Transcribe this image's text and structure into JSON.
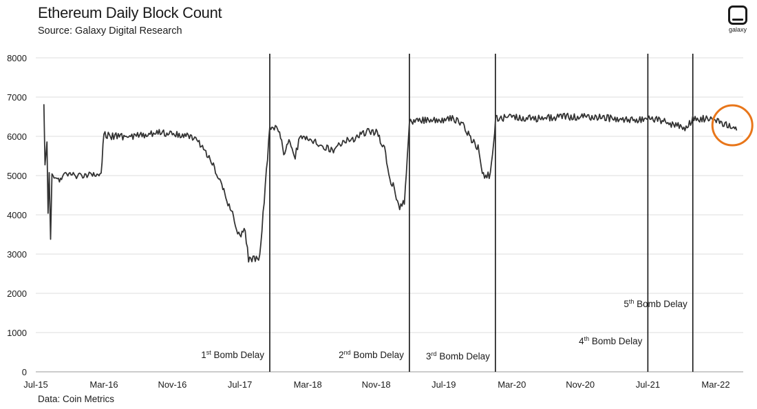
{
  "header": {
    "title": "Ethereum Daily Block Count",
    "subtitle": "Source: Galaxy Digital Research"
  },
  "footer": {
    "source": "Data: Coin Metrics"
  },
  "logo": {
    "icon": "galaxy-logo-icon",
    "text": "galaxy"
  },
  "colors": {
    "line": "#333333",
    "grid": "#dddddd",
    "event": "#111111",
    "highlight": "#e8761a"
  },
  "chart_data": {
    "type": "line",
    "title": "Ethereum Daily Block Count",
    "xlabel": "",
    "ylabel": "",
    "ylim": [
      0,
      8000
    ],
    "xlim": [
      "2015-07-30",
      "2022-05-15"
    ],
    "grid": "horizontal",
    "y_ticks": [
      0,
      1000,
      2000,
      3000,
      4000,
      5000,
      6000,
      7000,
      8000
    ],
    "x_ticks": [
      {
        "label": "Jul-15",
        "date": "2015-07-01"
      },
      {
        "label": "Mar-16",
        "date": "2016-03-01"
      },
      {
        "label": "Nov-16",
        "date": "2016-11-01"
      },
      {
        "label": "Jul-17",
        "date": "2017-07-01"
      },
      {
        "label": "Mar-18",
        "date": "2018-03-01"
      },
      {
        "label": "Nov-18",
        "date": "2018-11-01"
      },
      {
        "label": "Jul-19",
        "date": "2019-07-01"
      },
      {
        "label": "Mar-20",
        "date": "2020-03-01"
      },
      {
        "label": "Nov-20",
        "date": "2020-11-01"
      },
      {
        "label": "Jul-21",
        "date": "2021-07-01"
      },
      {
        "label": "Mar-22",
        "date": "2022-03-01"
      }
    ],
    "series": [
      {
        "values": [
          [
            "2015-07-30",
            6900
          ],
          [
            "2015-08-03",
            5200
          ],
          [
            "2015-08-10",
            5800
          ],
          [
            "2015-08-14",
            4000
          ],
          [
            "2015-08-18",
            5100
          ],
          [
            "2015-08-23",
            3400
          ],
          [
            "2015-08-28",
            5000
          ],
          [
            "2015-09-20",
            4900
          ],
          [
            "2015-10-20",
            5050
          ],
          [
            "2015-11-20",
            5000
          ],
          [
            "2015-12-20",
            5000
          ],
          [
            "2016-01-20",
            5050
          ],
          [
            "2016-02-05",
            5000
          ],
          [
            "2016-02-20",
            5100
          ],
          [
            "2016-03-01",
            6050
          ],
          [
            "2016-04-01",
            6000
          ],
          [
            "2016-06-01",
            6000
          ],
          [
            "2016-08-01",
            6050
          ],
          [
            "2016-09-15",
            6100
          ],
          [
            "2016-11-01",
            6050
          ],
          [
            "2017-01-01",
            6000
          ],
          [
            "2017-02-01",
            5900
          ],
          [
            "2017-03-01",
            5600
          ],
          [
            "2017-04-01",
            5200
          ],
          [
            "2017-05-01",
            4700
          ],
          [
            "2017-05-15",
            4300
          ],
          [
            "2017-06-01",
            4150
          ],
          [
            "2017-06-15",
            3700
          ],
          [
            "2017-07-01",
            3500
          ],
          [
            "2017-07-20",
            3600
          ],
          [
            "2017-08-01",
            2850
          ],
          [
            "2017-09-10",
            2900
          ],
          [
            "2017-10-16",
            6200
          ],
          [
            "2017-11-05",
            6250
          ],
          [
            "2017-11-20",
            6150
          ],
          [
            "2017-12-05",
            5500
          ],
          [
            "2017-12-20",
            5900
          ],
          [
            "2018-01-15",
            5500
          ],
          [
            "2018-02-01",
            5950
          ],
          [
            "2018-03-01",
            5950
          ],
          [
            "2018-04-01",
            5850
          ],
          [
            "2018-05-01",
            5700
          ],
          [
            "2018-06-01",
            5650
          ],
          [
            "2018-07-01",
            5850
          ],
          [
            "2018-08-01",
            5900
          ],
          [
            "2018-09-01",
            6000
          ],
          [
            "2018-10-01",
            6150
          ],
          [
            "2018-11-01",
            6100
          ],
          [
            "2018-12-01",
            5700
          ],
          [
            "2018-12-20",
            4900
          ],
          [
            "2019-01-05",
            4700
          ],
          [
            "2019-01-20",
            4200
          ],
          [
            "2019-02-10",
            4300
          ],
          [
            "2019-02-28",
            6400
          ],
          [
            "2019-04-01",
            6400
          ],
          [
            "2019-06-01",
            6400
          ],
          [
            "2019-08-01",
            6450
          ],
          [
            "2019-09-01",
            6350
          ],
          [
            "2019-10-01",
            6000
          ],
          [
            "2019-11-01",
            5700
          ],
          [
            "2019-11-20",
            5000
          ],
          [
            "2019-12-15",
            5000
          ],
          [
            "2020-01-03",
            6450
          ],
          [
            "2020-03-01",
            6500
          ],
          [
            "2020-06-01",
            6450
          ],
          [
            "2020-09-01",
            6500
          ],
          [
            "2020-12-01",
            6500
          ],
          [
            "2021-03-01",
            6450
          ],
          [
            "2021-05-01",
            6400
          ],
          [
            "2021-07-01",
            6450
          ],
          [
            "2021-08-01",
            6450
          ],
          [
            "2021-10-01",
            6300
          ],
          [
            "2021-11-15",
            6200
          ],
          [
            "2021-12-09",
            6450
          ],
          [
            "2022-01-15",
            6450
          ],
          [
            "2022-02-15",
            6450
          ],
          [
            "2022-03-15",
            6350
          ],
          [
            "2022-04-15",
            6300
          ],
          [
            "2022-05-01",
            6200
          ],
          [
            "2022-05-15",
            6150
          ]
        ]
      }
    ],
    "events": [
      {
        "label": "1",
        "sup": "st",
        "rest": " Bomb Delay",
        "date": "2017-10-16",
        "label_y": 350
      },
      {
        "label": "2",
        "sup": "nd",
        "rest": " Bomb Delay",
        "date": "2019-02-28",
        "label_y": 350
      },
      {
        "label": "3",
        "sup": "rd",
        "rest": " Bomb Delay",
        "date": "2020-01-02",
        "label_y": 320
      },
      {
        "label": "4",
        "sup": "th",
        "rest": " Bomb Delay",
        "date": "2021-07-01",
        "label_y": 700
      },
      {
        "label": "5",
        "sup": "th",
        "rest": " Bomb Delay",
        "date": "2021-12-09",
        "label_y": 1650
      }
    ],
    "highlight": {
      "date": "2022-04-10",
      "value": 6280,
      "shape": "circle"
    }
  }
}
